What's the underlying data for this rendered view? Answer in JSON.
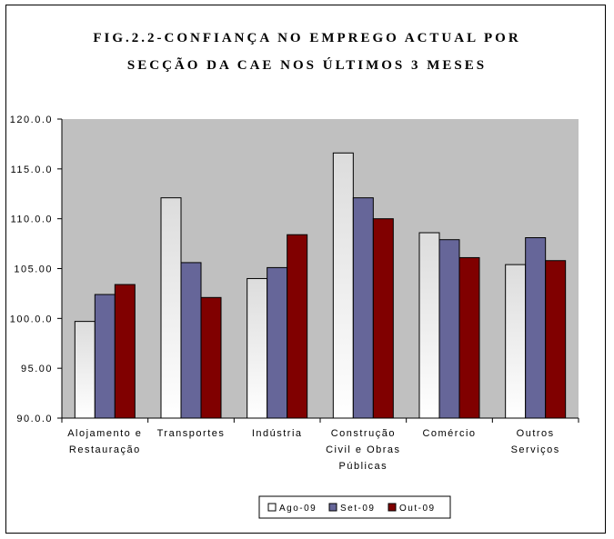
{
  "chart_data": {
    "type": "bar",
    "title_line1": "FIG.2.2-CONFIANÇA NO EMPREGO ACTUAL POR",
    "title_line2": "SECÇÃO DA CAE NOS ÚLTIMOS 3 MESES",
    "categories": [
      [
        "Alojamento e",
        "Restauração"
      ],
      [
        "Transportes"
      ],
      [
        "Indústria"
      ],
      [
        "Construção",
        "Civil e Obras",
        "Públicas"
      ],
      [
        "Comércio"
      ],
      [
        "Outros",
        "Serviços"
      ]
    ],
    "series": [
      {
        "name": "Ago-09",
        "color": "#e6e6e6",
        "values": [
          99.7,
          112.1,
          104.0,
          116.6,
          108.6,
          105.4
        ]
      },
      {
        "name": "Set-09",
        "color": "#666699",
        "values": [
          102.4,
          105.6,
          105.1,
          112.1,
          107.9,
          108.1
        ]
      },
      {
        "name": "Out-09",
        "color": "#800000",
        "values": [
          103.4,
          102.1,
          108.4,
          110.0,
          106.1,
          105.8
        ]
      }
    ],
    "ylim": [
      90,
      120
    ],
    "yticks": [
      90,
      95,
      100,
      105,
      110,
      115,
      120
    ],
    "ytick_labels": [
      "90.0.0",
      "95.00",
      "100.0.0",
      "105.00",
      "110.0.0",
      "115.0.0",
      "120.0.0"
    ],
    "plot_background": "#c0c0c0",
    "legend_position": "bottom-center"
  }
}
